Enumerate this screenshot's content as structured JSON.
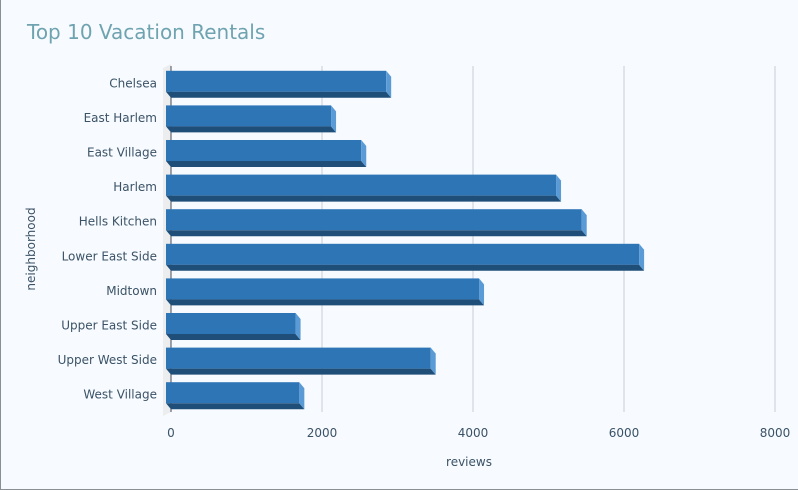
{
  "chart_data": {
    "type": "bar",
    "orientation": "horizontal",
    "title": "Top 10 Vacation Rentals",
    "xlabel": "reviews",
    "ylabel": "neighborhood",
    "categories": [
      "Chelsea",
      "East Harlem",
      "East Village",
      "Harlem",
      "Hells Kitchen",
      "Lower East Side",
      "Midtown",
      "Upper East Side",
      "Upper West Side",
      "West Village"
    ],
    "values": [
      2850,
      2120,
      2520,
      5100,
      5440,
      6200,
      4080,
      1650,
      3440,
      1700
    ],
    "x_ticks": [
      0,
      2000,
      4000,
      6000,
      8000
    ],
    "xlim": [
      0,
      8000
    ],
    "grid": true,
    "colors": {
      "bar_face": "#2e75b6",
      "bar_top": "#1f4e79",
      "bar_side": "#5b9bd5",
      "grid": "#c8ced4"
    }
  }
}
